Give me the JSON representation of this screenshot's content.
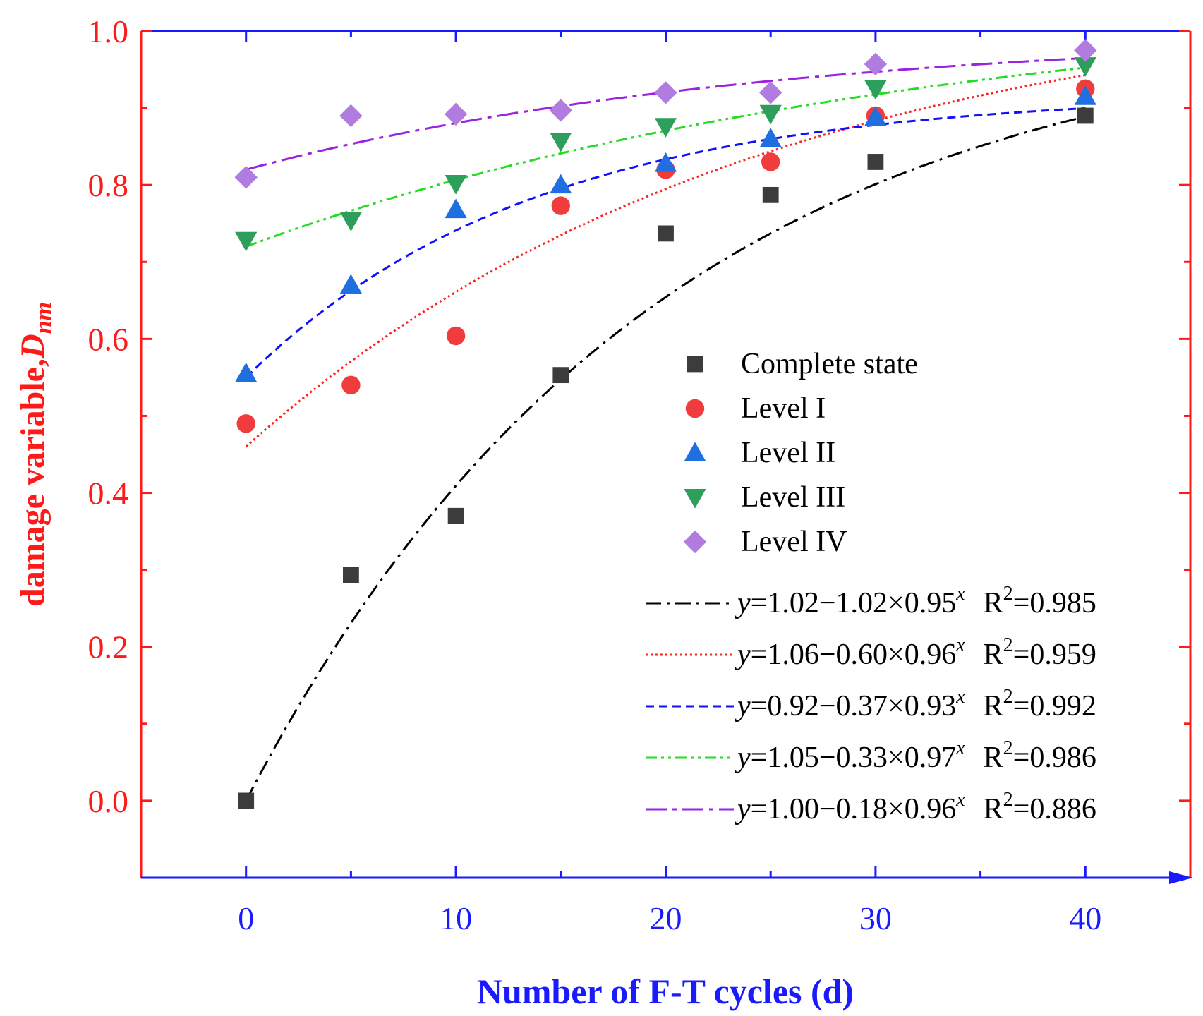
{
  "chart_data": {
    "type": "scatter",
    "xlabel": "Number of F-T cycles (d)",
    "ylabel_main": "damage variable,",
    "ylabel_symbol": "D",
    "ylabel_subscript": "nm",
    "xlim": [
      -5,
      45
    ],
    "ylim": [
      -0.1,
      1.0
    ],
    "x_ticks": [
      0,
      10,
      20,
      30,
      40
    ],
    "x_tick_labels": [
      "0",
      "10",
      "20",
      "30",
      "40"
    ],
    "x_minor_ticks": [
      5,
      15,
      25,
      35
    ],
    "y_ticks": [
      0.0,
      0.2,
      0.4,
      0.6,
      0.8,
      1.0
    ],
    "y_tick_labels": [
      "0.0",
      "0.2",
      "0.4",
      "0.6",
      "0.8",
      "1.0"
    ],
    "colors": {
      "x_axis": "#1a1aff",
      "y_axis": "#ff1a1a"
    },
    "legend_position": "bottom-right",
    "series": [
      {
        "name": "Complete state",
        "marker": "square",
        "color": "#3c3c3c",
        "x": [
          0,
          5,
          10,
          15,
          20,
          25,
          30,
          40
        ],
        "y": [
          0.0,
          0.293,
          0.37,
          0.553,
          0.737,
          0.787,
          0.83,
          0.89
        ]
      },
      {
        "name": "Level I",
        "marker": "circle",
        "color": "#f03c3c",
        "x": [
          0,
          5,
          10,
          15,
          20,
          25,
          30,
          40
        ],
        "y": [
          0.49,
          0.54,
          0.604,
          0.773,
          0.82,
          0.83,
          0.89,
          0.925
        ]
      },
      {
        "name": "Level II",
        "marker": "triangle-up",
        "color": "#1f6fe0",
        "x": [
          0,
          5,
          10,
          15,
          20,
          25,
          30,
          40
        ],
        "y": [
          0.555,
          0.67,
          0.768,
          0.8,
          0.828,
          0.86,
          0.888,
          0.915
        ]
      },
      {
        "name": "Level III",
        "marker": "triangle-down",
        "color": "#2e9e5c",
        "x": [
          0,
          5,
          10,
          15,
          20,
          25,
          30,
          40
        ],
        "y": [
          0.728,
          0.754,
          0.802,
          0.857,
          0.876,
          0.893,
          0.925,
          0.955
        ]
      },
      {
        "name": "Level IV",
        "marker": "diamond",
        "color": "#b07ce0",
        "x": [
          0,
          5,
          10,
          15,
          20,
          25,
          30,
          40
        ],
        "y": [
          0.81,
          0.89,
          0.892,
          0.897,
          0.92,
          0.92,
          0.957,
          0.975
        ]
      }
    ],
    "fits": [
      {
        "pre": "y",
        "eq": "=1.02−1.02×0.95",
        "exp": "x",
        "r2_label": "R",
        "r2_sup": "2",
        "r2_value": "=0.985",
        "a": 1.02,
        "b": 1.02,
        "c": 0.95,
        "color": "#000000",
        "dash": "22 8 4 8"
      },
      {
        "pre": "y",
        "eq": "=1.06−0.60×0.96",
        "exp": "x",
        "r2_label": "R",
        "r2_sup": "2",
        "r2_value": "=0.959",
        "a": 1.06,
        "b": 0.6,
        "c": 0.96,
        "color": "#ff2020",
        "dash": "3 4"
      },
      {
        "pre": "y",
        "eq": "=0.92−0.37×0.93",
        "exp": "x",
        "r2_label": "R",
        "r2_sup": "2",
        "r2_value": "=0.992",
        "a": 0.92,
        "b": 0.37,
        "c": 0.93,
        "color": "#1010ff",
        "dash": "12 7"
      },
      {
        "pre": "y",
        "eq": "=1.05−0.33×0.97",
        "exp": "x",
        "r2_label": "R",
        "r2_sup": "2",
        "r2_value": "=0.986",
        "a": 1.05,
        "b": 0.33,
        "c": 0.97,
        "color": "#22dd22",
        "dash": "16 6 4 6 4 6"
      },
      {
        "pre": "y",
        "eq": "=1.00−0.18×0.96",
        "exp": "x",
        "r2_label": "R",
        "r2_sup": "2",
        "r2_value": "=0.886",
        "a": 1.0,
        "b": 0.18,
        "c": 0.96,
        "color": "#9a22e0",
        "dash": "30 8 6 8"
      }
    ]
  }
}
